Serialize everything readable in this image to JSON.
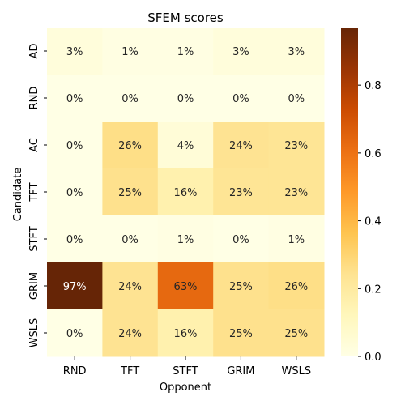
{
  "chart_data": {
    "type": "heatmap",
    "title": "SFEM scores",
    "xlabel": "Opponent",
    "ylabel": "Candidate",
    "x_categories": [
      "RND",
      "TFT",
      "STFT",
      "GRIM",
      "WSLS"
    ],
    "y_categories": [
      "AD",
      "RND",
      "AC",
      "TFT",
      "STFT",
      "GRIM",
      "WSLS"
    ],
    "values": [
      [
        0.03,
        0.01,
        0.01,
        0.03,
        0.03
      ],
      [
        0.0,
        0.0,
        0.0,
        0.0,
        0.0
      ],
      [
        0.0,
        0.26,
        0.04,
        0.24,
        0.23
      ],
      [
        0.0,
        0.25,
        0.16,
        0.23,
        0.23
      ],
      [
        0.0,
        0.0,
        0.01,
        0.0,
        0.01
      ],
      [
        0.97,
        0.24,
        0.63,
        0.25,
        0.26
      ],
      [
        0.0,
        0.24,
        0.16,
        0.25,
        0.25
      ]
    ],
    "cell_labels": [
      [
        "3%",
        "1%",
        "1%",
        "3%",
        "3%"
      ],
      [
        "0%",
        "0%",
        "0%",
        "0%",
        "0%"
      ],
      [
        "0%",
        "26%",
        "4%",
        "24%",
        "23%"
      ],
      [
        "0%",
        "25%",
        "16%",
        "23%",
        "23%"
      ],
      [
        "0%",
        "0%",
        "1%",
        "0%",
        "1%"
      ],
      [
        "97%",
        "24%",
        "63%",
        "25%",
        "26%"
      ],
      [
        "0%",
        "24%",
        "16%",
        "25%",
        "25%"
      ]
    ],
    "colormap": "YlOrBr",
    "colorbar": {
      "range": [
        0.0,
        0.97
      ],
      "ticks": [
        0.0,
        0.2,
        0.4,
        0.6,
        0.8
      ],
      "tick_labels": [
        "0.0",
        "0.2",
        "0.4",
        "0.6",
        "0.8"
      ]
    }
  }
}
